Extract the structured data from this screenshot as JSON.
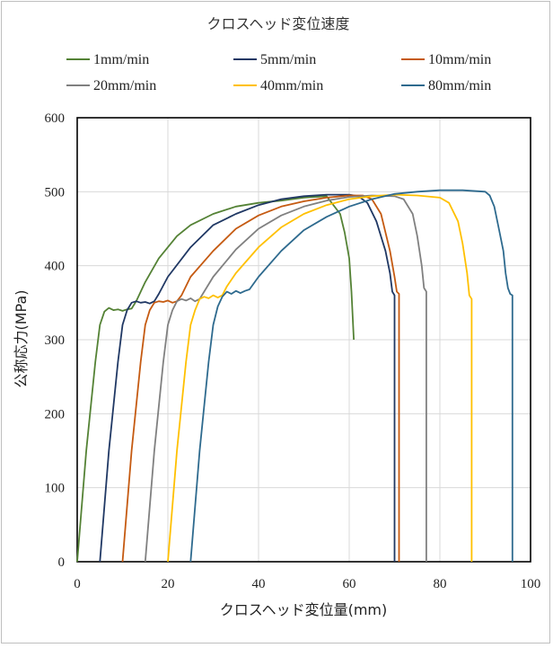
{
  "chart_data": {
    "type": "line",
    "title": "",
    "legend_title": "クロスヘッド変位速度",
    "legend_position": "top",
    "xlabel": "クロスヘッド変位量(mm)",
    "ylabel": "公称応力(MPa)",
    "xlim": [
      0,
      100
    ],
    "ylim": [
      0,
      600
    ],
    "xticks": [
      "0",
      "20",
      "40",
      "60",
      "80",
      "100"
    ],
    "yticks": [
      "0",
      "100",
      "200",
      "300",
      "400",
      "500",
      "600"
    ],
    "grid": true,
    "series": [
      {
        "name": "1mm/min",
        "color": "#548235",
        "x": [
          0,
          2,
          4,
          5,
          6,
          7,
          8,
          9,
          10,
          11,
          12,
          13,
          15,
          18,
          22,
          25,
          30,
          35,
          40,
          45,
          50,
          55,
          58,
          59,
          60,
          60.5,
          61
        ],
        "y": [
          0,
          150,
          270,
          320,
          338,
          343,
          340,
          341,
          339,
          341,
          342,
          352,
          378,
          410,
          440,
          455,
          470,
          480,
          485,
          488,
          492,
          494,
          470,
          445,
          410,
          365,
          300
        ]
      },
      {
        "name": "5mm/min",
        "color": "#203864",
        "x": [
          5,
          7,
          9,
          10,
          11,
          12,
          13,
          14,
          15,
          16,
          17,
          18,
          20,
          25,
          30,
          35,
          40,
          45,
          50,
          55,
          60,
          62,
          64,
          66,
          68,
          69,
          69.5,
          70,
          70
        ],
        "y": [
          0,
          150,
          270,
          320,
          340,
          350,
          352,
          350,
          351,
          349,
          352,
          362,
          385,
          425,
          455,
          470,
          482,
          490,
          494,
          496,
          496,
          494,
          485,
          460,
          420,
          390,
          365,
          360,
          0
        ]
      },
      {
        "name": "10mm/min",
        "color": "#C55A11",
        "x": [
          10,
          12,
          14,
          15,
          16,
          17,
          18,
          19,
          20,
          21,
          22,
          23,
          25,
          30,
          35,
          40,
          45,
          50,
          55,
          60,
          63,
          65,
          67,
          69,
          70,
          70.5,
          71,
          71
        ],
        "y": [
          0,
          150,
          270,
          320,
          340,
          350,
          352,
          351,
          353,
          350,
          352,
          360,
          385,
          420,
          450,
          468,
          480,
          487,
          492,
          495,
          495,
          490,
          470,
          420,
          385,
          365,
          362,
          0
        ]
      },
      {
        "name": "20mm/min",
        "color": "#808080",
        "x": [
          15,
          17,
          19,
          20,
          21,
          22,
          23,
          24,
          25,
          26,
          27,
          28,
          30,
          35,
          40,
          45,
          50,
          55,
          60,
          65,
          70,
          72,
          74,
          75,
          76,
          76.5,
          77,
          77
        ],
        "y": [
          0,
          150,
          270,
          320,
          340,
          352,
          355,
          353,
          356,
          352,
          355,
          365,
          385,
          422,
          450,
          468,
          480,
          488,
          493,
          495,
          494,
          490,
          470,
          440,
          400,
          370,
          365,
          0
        ]
      },
      {
        "name": "40mm/min",
        "color": "#FFC000",
        "x": [
          20,
          22,
          24,
          25,
          26,
          27,
          28,
          29,
          30,
          31,
          32,
          33,
          35,
          40,
          45,
          50,
          55,
          60,
          65,
          70,
          75,
          80,
          82,
          84,
          85,
          86,
          86.5,
          87,
          87
        ],
        "y": [
          0,
          150,
          270,
          320,
          340,
          355,
          358,
          356,
          360,
          357,
          360,
          372,
          390,
          425,
          452,
          470,
          482,
          490,
          494,
          496,
          495,
          492,
          485,
          460,
          430,
          390,
          360,
          355,
          0
        ]
      },
      {
        "name": "80mm/min",
        "color": "#2E6A8E",
        "x": [
          25,
          27,
          29,
          30,
          31,
          32,
          33,
          34,
          35,
          36,
          37,
          38,
          40,
          45,
          50,
          55,
          60,
          65,
          70,
          75,
          80,
          85,
          90,
          91,
          92,
          93,
          94,
          94.5,
          95,
          95.5,
          96,
          96
        ],
        "y": [
          0,
          150,
          270,
          320,
          345,
          358,
          365,
          362,
          366,
          363,
          366,
          368,
          385,
          420,
          448,
          466,
          480,
          490,
          497,
          500,
          502,
          502,
          500,
          495,
          480,
          450,
          420,
          390,
          370,
          362,
          360,
          0
        ]
      }
    ]
  }
}
